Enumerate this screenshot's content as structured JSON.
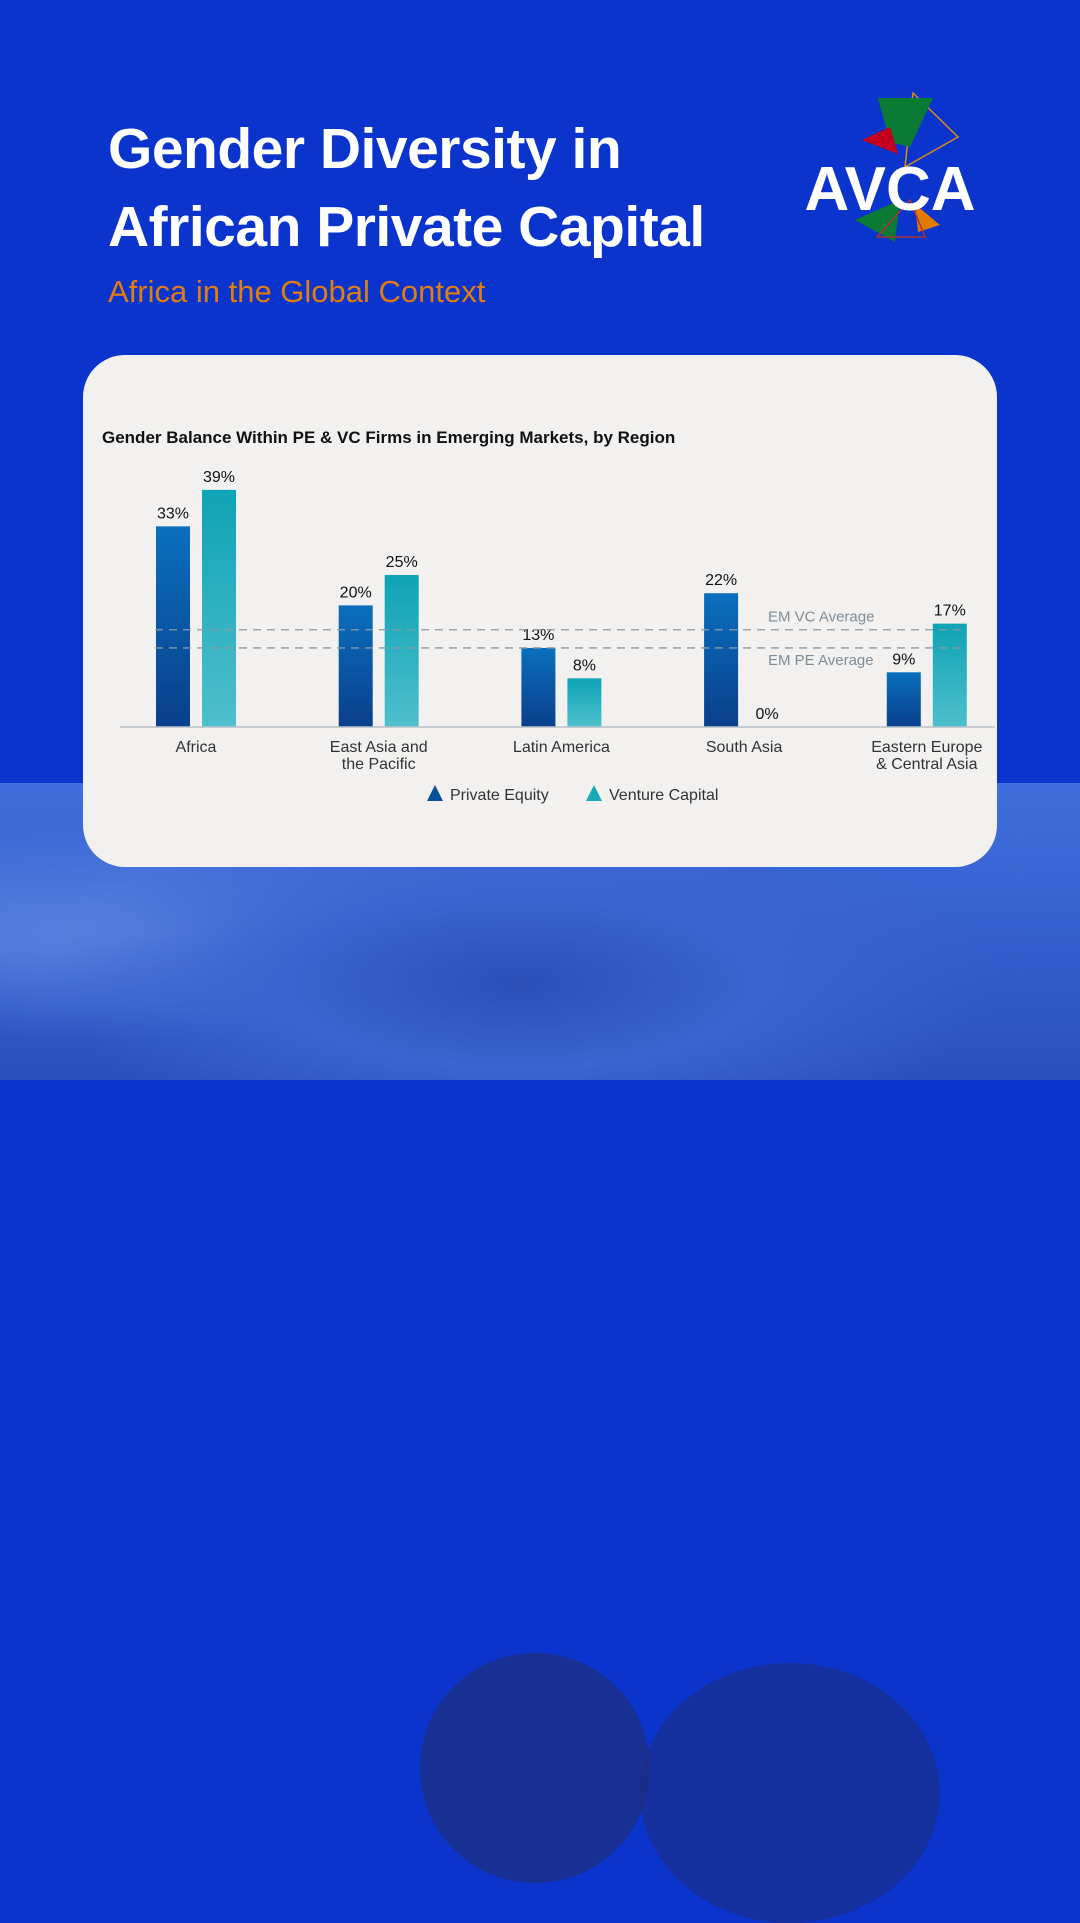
{
  "header": {
    "title_line1": "Gender Diversity in",
    "title_line2": "African Private Capital",
    "subtitle": "Africa in the Global Context",
    "logo_text": "AVCA"
  },
  "chart_data": {
    "type": "bar",
    "title": "Gender Balance Within PE & VC Firms in Emerging Markets, by Region",
    "categories": [
      "Africa",
      "East Asia and the Pacific",
      "Latin America",
      "South Asia",
      "Eastern Europe & Central Asia"
    ],
    "category_lines": [
      [
        "Africa"
      ],
      [
        "East Asia and",
        "the Pacific"
      ],
      [
        "Latin America"
      ],
      [
        "South Asia"
      ],
      [
        "Eastern Europe",
        "& Central Asia"
      ]
    ],
    "series": [
      {
        "name": "Private Equity",
        "values": [
          33,
          20,
          13,
          22,
          9
        ],
        "labels": [
          "33%",
          "20%",
          "13%",
          "22%",
          "9%"
        ],
        "color": "#0a5aa8"
      },
      {
        "name": "Venture Capital",
        "values": [
          39,
          25,
          8,
          0,
          17
        ],
        "labels": [
          "39%",
          "25%",
          "8%",
          "0%",
          "17%"
        ],
        "color": "#1aa7b8"
      }
    ],
    "reference_lines": [
      {
        "label": "EM VC Average",
        "value": 16
      },
      {
        "label": "EM PE Average",
        "value": 13
      }
    ],
    "ylim": [
      0,
      40
    ],
    "legend_position": "bottom",
    "grid": false
  }
}
